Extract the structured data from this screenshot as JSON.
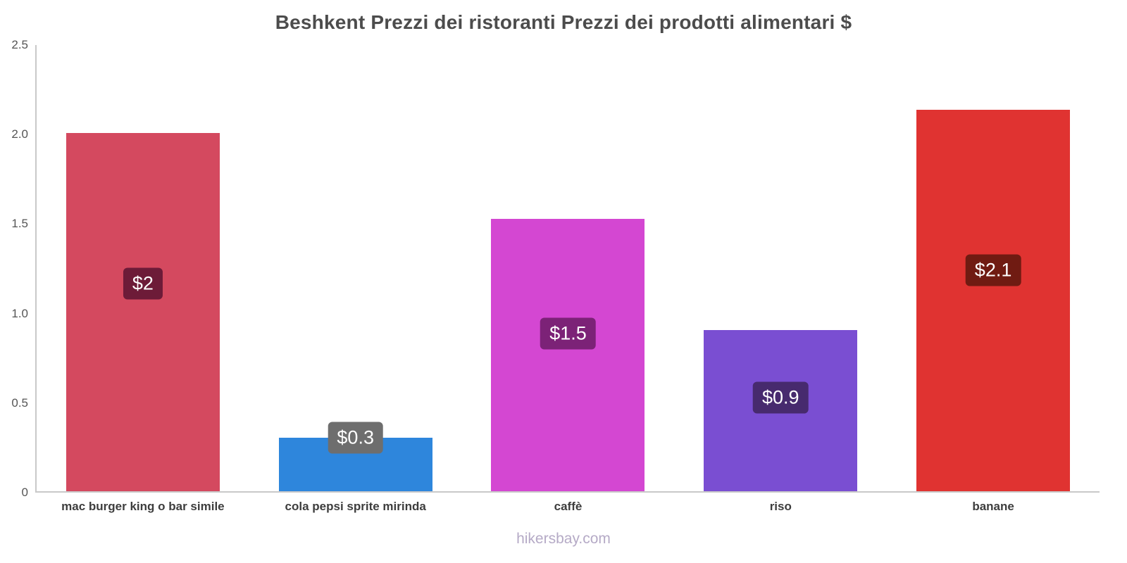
{
  "footer": {
    "watermark": "hikersbay.com"
  },
  "chart_data": {
    "type": "bar",
    "title": "Beshkent Prezzi dei ristoranti Prezzi dei prodotti alimentari $",
    "categories": [
      "mac burger king o bar simile",
      "cola pepsi sprite mirinda",
      "caffè",
      "riso",
      "banane"
    ],
    "values": [
      2,
      0.3,
      1.52,
      0.9,
      2.13
    ],
    "value_labels": [
      "$2",
      "$0.3",
      "$1.5",
      "$0.9",
      "$2.1"
    ],
    "bar_colors": [
      "#d4495f",
      "#2e86dc",
      "#d447d2",
      "#7a4ed2",
      "#e03331"
    ],
    "label_colors": [
      "#6d1b38",
      "#6e6e6e",
      "#7c2277",
      "#472a6e",
      "#701b12"
    ],
    "xlabel": "",
    "ylabel": "",
    "ylim": [
      0,
      2.5
    ],
    "yticks": [
      "0",
      "0.5",
      "1.0",
      "1.5",
      "2.0",
      "2.5"
    ],
    "grid": false,
    "legend": false
  }
}
